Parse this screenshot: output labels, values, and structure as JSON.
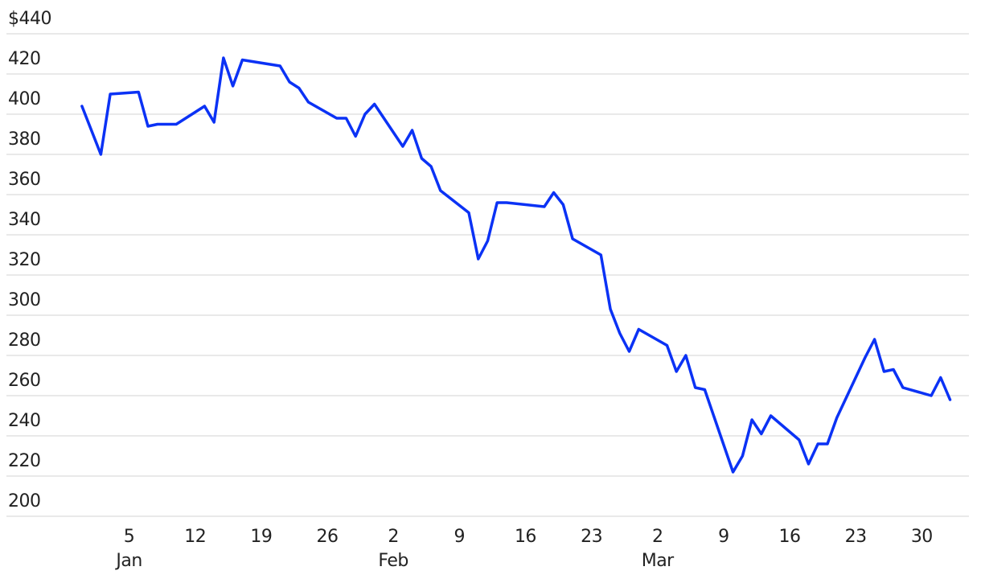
{
  "chart_data": {
    "type": "line",
    "x": [
      0,
      2,
      3,
      6,
      7,
      8,
      10,
      13,
      14,
      15,
      16,
      17,
      21,
      22,
      23,
      24,
      27,
      28,
      29,
      30,
      31,
      34,
      35,
      36,
      37,
      38,
      41,
      42,
      43,
      44,
      45,
      49,
      50,
      51,
      52,
      55,
      56,
      57,
      58,
      59,
      62,
      63,
      64,
      65,
      66,
      69,
      70,
      71,
      72,
      73,
      76,
      77,
      78,
      79,
      80,
      83,
      84,
      85,
      86,
      87,
      90,
      91,
      92
    ],
    "series": [
      {
        "color": "#0b32f5",
        "values": [
          404,
          380,
          410,
          411,
          394,
          395,
          395,
          404,
          396,
          428,
          414,
          427,
          424,
          416,
          413,
          406,
          398,
          398,
          389,
          400,
          405,
          384,
          392,
          378,
          374,
          362,
          351,
          328,
          337,
          356,
          356,
          354,
          361,
          355,
          338,
          330,
          303,
          291,
          282,
          293,
          285,
          272,
          280,
          264,
          263,
          222,
          230,
          248,
          241,
          250,
          238,
          226,
          236,
          236,
          249,
          279,
          288,
          272,
          273,
          264,
          260,
          269,
          258
        ]
      }
    ],
    "xlim": [
      -8,
      94
    ],
    "xticks": [
      5,
      12,
      19,
      26,
      {
        "value": 33,
        "label": "2"
      },
      {
        "value": 40,
        "label": "9"
      },
      {
        "value": 47,
        "label": "16"
      },
      {
        "value": 54,
        "label": "23"
      },
      {
        "value": 61,
        "label": "2"
      },
      {
        "value": 68,
        "label": "9"
      },
      {
        "value": 75,
        "label": "16"
      },
      {
        "value": 82,
        "label": "23"
      },
      {
        "value": 89,
        "label": "30"
      }
    ],
    "month_labels": [
      {
        "value": 5,
        "label": "Jan"
      },
      {
        "value": 33,
        "label": "Feb"
      },
      {
        "value": 61,
        "label": "Mar"
      }
    ],
    "ylim": [
      200,
      440
    ],
    "yticks": [
      {
        "value": 440,
        "label": "$440"
      },
      420,
      400,
      380,
      360,
      340,
      320,
      300,
      280,
      260,
      240,
      220,
      200
    ],
    "grid": true
  }
}
